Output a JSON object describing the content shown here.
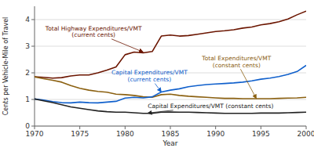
{
  "chart_data": {
    "type": "line",
    "xlabel": "Year",
    "ylabel": "Cents per Vehicle-Mile of Travel",
    "xlim": [
      1970,
      2000
    ],
    "ylim": [
      0,
      4.5
    ],
    "xticks": [
      1970,
      1975,
      1980,
      1985,
      1990,
      1995,
      2000
    ],
    "yticks": [
      0,
      1,
      2,
      3,
      4
    ],
    "grid": true,
    "x": [
      1970,
      1971,
      1972,
      1973,
      1974,
      1975,
      1976,
      1977,
      1978,
      1979,
      1980,
      1981,
      1982,
      1983,
      1984,
      1985,
      1986,
      1987,
      1988,
      1989,
      1990,
      1991,
      1992,
      1993,
      1994,
      1995,
      1996,
      1997,
      1998,
      1999,
      2000
    ],
    "series": [
      {
        "color": "#6b1500",
        "values": [
          1.85,
          1.83,
          1.8,
          1.82,
          1.88,
          1.92,
          1.92,
          2.0,
          2.1,
          2.22,
          2.68,
          2.78,
          2.75,
          2.8,
          3.38,
          3.42,
          3.38,
          3.4,
          3.45,
          3.5,
          3.55,
          3.58,
          3.62,
          3.68,
          3.72,
          3.8,
          3.85,
          3.92,
          4.02,
          4.18,
          4.32
        ]
      },
      {
        "color": "#8b6010",
        "values": [
          1.85,
          1.78,
          1.72,
          1.65,
          1.52,
          1.42,
          1.35,
          1.3,
          1.27,
          1.2,
          1.18,
          1.15,
          1.1,
          1.08,
          1.18,
          1.2,
          1.15,
          1.12,
          1.1,
          1.08,
          1.06,
          1.04,
          1.04,
          1.03,
          1.03,
          1.03,
          1.03,
          1.04,
          1.05,
          1.06,
          1.08
        ]
      },
      {
        "color": "#1060cc",
        "values": [
          1.02,
          0.98,
          0.92,
          0.88,
          0.87,
          0.9,
          0.88,
          0.87,
          0.9,
          0.93,
          1.05,
          1.08,
          1.06,
          1.1,
          1.28,
          1.35,
          1.4,
          1.48,
          1.52,
          1.56,
          1.58,
          1.6,
          1.62,
          1.65,
          1.7,
          1.76,
          1.8,
          1.86,
          1.94,
          2.05,
          2.28
        ]
      },
      {
        "color": "#222222",
        "values": [
          1.02,
          0.95,
          0.88,
          0.8,
          0.72,
          0.67,
          0.62,
          0.57,
          0.54,
          0.52,
          0.52,
          0.5,
          0.48,
          0.48,
          0.52,
          0.53,
          0.52,
          0.52,
          0.51,
          0.5,
          0.49,
          0.48,
          0.48,
          0.48,
          0.48,
          0.49,
          0.49,
          0.49,
          0.5,
          0.51,
          0.52
        ]
      }
    ],
    "annotations": [
      {
        "text": "Total Highway Expenditures/VMT\n(current cents)",
        "x": 1982.0,
        "y": 2.78,
        "text_x": 1971.2,
        "text_y": 3.55,
        "color": "#6b1500"
      },
      {
        "text": "Total Expenditures/VMT\n(constant cents)",
        "x": 1994.5,
        "y": 1.03,
        "text_x": 1988.5,
        "text_y": 2.42,
        "color": "#8b6010"
      },
      {
        "text": "Capital Expenditures/VMT\n(current cents)",
        "x": 1984.0,
        "y": 1.28,
        "text_x": 1978.5,
        "text_y": 1.88,
        "color": "#1060cc"
      },
      {
        "text": "Capital Expenditures/VMT (constant cents)",
        "x": 1982.5,
        "y": 0.49,
        "text_x": 1982.5,
        "text_y": 0.75,
        "color": "#222222"
      }
    ]
  }
}
